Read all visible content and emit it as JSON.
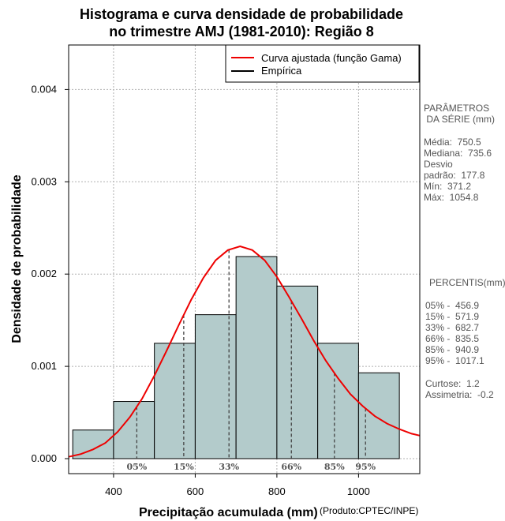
{
  "chart_data": {
    "type": "bar",
    "title_line1": "Histograma e curva densidade de probabilidade",
    "title_line2": "no trimestre AMJ (1981-2010): Região 8",
    "xlabel": "Precipitação acumulada (mm)",
    "ylabel": "Densidade de probabilidade",
    "credit": "(Produto:CPTEC/INPE)",
    "xlim": [
      290,
      1150
    ],
    "ylim": [
      0,
      0.0045
    ],
    "x_ticks": [
      400,
      600,
      800,
      1000
    ],
    "y_ticks": [
      "0.000",
      "0.001",
      "0.002",
      "0.003",
      "0.004"
    ],
    "grid": true,
    "bins": [
      {
        "from": 300,
        "to": 400,
        "density": 0.00031
      },
      {
        "from": 400,
        "to": 500,
        "density": 0.00062
      },
      {
        "from": 500,
        "to": 600,
        "density": 0.00125
      },
      {
        "from": 600,
        "to": 700,
        "density": 0.00156
      },
      {
        "from": 700,
        "to": 800,
        "density": 0.00219
      },
      {
        "from": 800,
        "to": 900,
        "density": 0.00187
      },
      {
        "from": 900,
        "to": 1000,
        "density": 0.00125
      },
      {
        "from": 1000,
        "to": 1100,
        "density": 0.00093
      }
    ],
    "fitted_curve": {
      "name": "Curva ajustada (função Gama)",
      "color": "#ee0000",
      "x": [
        290,
        320,
        350,
        380,
        410,
        440,
        470,
        500,
        530,
        560,
        590,
        620,
        650,
        680,
        710,
        740,
        770,
        800,
        830,
        860,
        890,
        920,
        950,
        980,
        1010,
        1040,
        1070,
        1100,
        1130,
        1150
      ],
      "y": [
        2e-05,
        5e-05,
        0.0001,
        0.00017,
        0.00029,
        0.00045,
        0.00065,
        0.0009,
        0.00117,
        0.00145,
        0.00172,
        0.00196,
        0.00215,
        0.00226,
        0.0023,
        0.00226,
        0.00215,
        0.00197,
        0.00175,
        0.00152,
        0.00128,
        0.00106,
        0.00087,
        0.0007,
        0.00057,
        0.00046,
        0.00038,
        0.00032,
        0.00027,
        0.00025
      ]
    },
    "empirical_name": "Empírica",
    "percentiles": [
      {
        "label": "05%",
        "value": 456.9
      },
      {
        "label": "15%",
        "value": 571.9
      },
      {
        "label": "33%",
        "value": 682.7
      },
      {
        "label": "66%",
        "value": 835.5
      },
      {
        "label": "85%",
        "value": 940.9
      },
      {
        "label": "95%",
        "value": 1017.1
      }
    ],
    "legend_position": "top-right",
    "colors": {
      "bars": "#b3cbcb",
      "curve": "#ee0000",
      "grid": "#b0b0b0",
      "side_text": "#555555"
    }
  },
  "side_panel": {
    "params_title1": "PARÂMETROS",
    "params_title2": " DA SÉRIE (mm)",
    "media": "Média:  750.5",
    "mediana": "Mediana:  735.6",
    "desvio1": "Desvio",
    "desvio2": "padrão:  177.8",
    "min": "Mín:  371.2",
    "max": "Máx:  1054.8",
    "percentis_title": "PERCENTIS(mm)",
    "p05": "05% -  456.9",
    "p15": "15% -  571.9",
    "p33": "33% -  682.7",
    "p66": "66% -  835.5",
    "p85": "85% -  940.9",
    "p95": "95% -  1017.1",
    "curtose": "Curtose:  1.2",
    "assimetria": "Assimetria:  -0.2"
  }
}
